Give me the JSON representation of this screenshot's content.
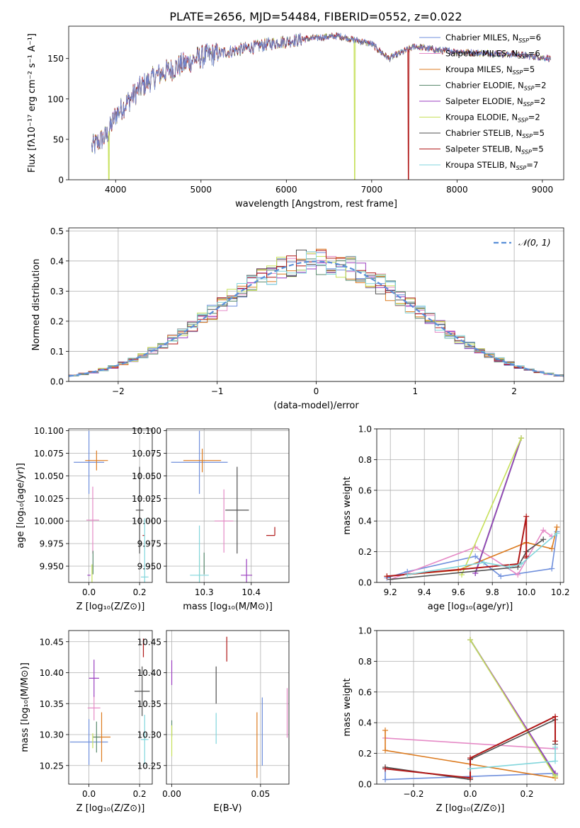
{
  "title": "PLATE=2656, MJD=54484, FIBERID=0552, z=0.022",
  "colors": {
    "chabrier_miles": "#6f8fdc",
    "salpeter_miles": "#e58ac6",
    "kroupa_miles": "#dc7a1e",
    "chabrier_elodie": "#5a8a6e",
    "salpeter_elodie": "#9b3fc0",
    "kroupa_elodie": "#c6e05a",
    "chabrier_stelib": "#505050",
    "salpeter_stelib": "#b01818",
    "kroupa_stelib": "#82d6dc",
    "normal": "#5a8fd8"
  },
  "chart_data": [
    {
      "id": "spectrum",
      "type": "line",
      "xlabel": "wavelength [Angstrom, rest frame]",
      "ylabel": "Flux [f$_\\lambda$10$^{-17}$ erg cm$^{-2}$ s$^{-1}$ A$^{-1}$]",
      "ylabel_display": "Flux [fλ10⁻¹⁷ erg cm⁻² s⁻¹ A⁻¹]",
      "xlim": [
        3450,
        9250
      ],
      "ylim": [
        0,
        190
      ],
      "xticks": [
        4000,
        5000,
        6000,
        7000,
        8000,
        9000
      ],
      "yticks": [
        0,
        50,
        100,
        150
      ],
      "legend_position": "top-right",
      "legend": [
        "Chabrier MILES, N$_{SSP}$=6",
        "Salpeter MILES, N$_{SSP}$=6",
        "Kroupa MILES, N$_{SSP}$=5",
        "Chabrier ELODIE, N$_{SSP}$=2",
        "Salpeter ELODIE, N$_{SSP}$=2",
        "Kroupa ELODIE, N$_{SSP}$=2",
        "Chabrier STELIB, N$_{SSP}$=5",
        "Salpeter STELIB, N$_{SSP}$=5",
        "Kroupa STELIB, N$_{SSP}$=7"
      ],
      "legend_labels": [
        {
          "name": "Chabrier MILES, N",
          "sub": "SSP",
          "tail": "=6"
        },
        {
          "name": "Salpeter MILES, N",
          "sub": "SSP",
          "tail": "=6"
        },
        {
          "name": "Kroupa MILES, N",
          "sub": "SSP",
          "tail": "=5"
        },
        {
          "name": "Chabrier ELODIE, N",
          "sub": "SSP",
          "tail": "=2"
        },
        {
          "name": "Salpeter ELODIE, N",
          "sub": "SSP",
          "tail": "=2"
        },
        {
          "name": "Kroupa ELODIE, N",
          "sub": "SSP",
          "tail": "=2"
        },
        {
          "name": "Chabrier STELIB, N",
          "sub": "SSP",
          "tail": "=5"
        },
        {
          "name": "Salpeter STELIB, N",
          "sub": "SSP",
          "tail": "=5"
        },
        {
          "name": "Kroupa STELIB, N",
          "sub": "SSP",
          "tail": "=7"
        }
      ],
      "series_keys": [
        "chabrier_miles",
        "salpeter_miles",
        "kroupa_miles",
        "chabrier_elodie",
        "salpeter_elodie",
        "kroupa_elodie",
        "chabrier_stelib",
        "salpeter_stelib",
        "kroupa_stelib"
      ],
      "wavelength_range": [
        3720,
        9100
      ],
      "envelope_nodes": [
        [
          3720,
          40
        ],
        [
          3900,
          55
        ],
        [
          4000,
          80
        ],
        [
          4300,
          115
        ],
        [
          4500,
          130
        ],
        [
          5000,
          152
        ],
        [
          5500,
          162
        ],
        [
          5900,
          170
        ],
        [
          6300,
          175
        ],
        [
          6600,
          178
        ],
        [
          7000,
          168
        ],
        [
          7200,
          150
        ],
        [
          7500,
          165
        ],
        [
          7800,
          160
        ],
        [
          8200,
          157
        ],
        [
          8700,
          155
        ],
        [
          9100,
          150
        ]
      ],
      "drops": [
        {
          "series": "kroupa_elodie",
          "wavelength": 3920
        },
        {
          "series": "kroupa_elodie",
          "wavelength": 6800
        },
        {
          "series": "salpeter_stelib",
          "wavelength": 7430
        }
      ]
    },
    {
      "id": "residuals",
      "type": "histogram",
      "xlabel": "(data-model)/error",
      "ylabel": "Normed distribution",
      "xlim": [
        -2.5,
        2.5
      ],
      "ylim": [
        0,
        0.51
      ],
      "xticks": [
        -2,
        -1,
        0,
        1,
        2
      ],
      "yticks": [
        0.0,
        0.1,
        0.2,
        0.3,
        0.4,
        0.5
      ],
      "grid": true,
      "bin_width": 0.1,
      "legend_position": "top-right",
      "legend": [
        "$\\mathcal{N}(0,1)$"
      ],
      "legend_display": "𝒩(0, 1)"
    },
    {
      "id": "age-vs-Z",
      "type": "errorbar",
      "xlabel": "Z [log$_{10}$(Z/Z$_\\odot$)]",
      "xlabel_display": "Z [log₁₀(Z/Z⊙)]",
      "ylabel": "age  [log$_{10}$(age/yr)]",
      "ylabel_display": "age  [log₁₀(age/yr)]",
      "xlim": [
        -0.08,
        0.25
      ],
      "ylim": [
        9.932,
        10.102
      ],
      "xticks": [
        0.0,
        0.2
      ],
      "yticks": [
        9.95,
        9.975,
        10.0,
        10.025,
        10.05,
        10.075,
        10.1
      ],
      "grid": true,
      "points": [
        {
          "series": "chabrier_miles",
          "x": 0.0,
          "y": 10.065,
          "xerr": 0.06,
          "yerr": 0.035
        },
        {
          "series": "kroupa_miles",
          "x": 0.03,
          "y": 10.067,
          "xerr": 0.045,
          "yerr": 0.011
        },
        {
          "series": "salpeter_miles",
          "x": 0.015,
          "y": 10.001,
          "xerr": 0.025,
          "yerr": 0.037
        },
        {
          "series": "chabrier_elodie",
          "x": 0.016,
          "y": 9.954,
          "xerr": 0.0,
          "yerr": 0.013
        },
        {
          "series": "kroupa_elodie",
          "x": 0.012,
          "y": 9.94,
          "xerr": 0.0,
          "yerr": 0.012
        },
        {
          "series": "salpeter_elodie",
          "x": 0.0,
          "y": 9.94,
          "xerr": 0.006,
          "yerr": 0.0
        },
        {
          "series": "chabrier_stelib",
          "x": 0.2,
          "y": 10.012,
          "xerr": 0.015,
          "yerr": 0.048
        },
        {
          "series": "salpeter_stelib",
          "x": 0.215,
          "y": 9.984,
          "xerr": 0.003,
          "yerr": 0.0
        },
        {
          "series": "kroupa_stelib",
          "x": 0.22,
          "y": 9.938,
          "xerr": 0.015,
          "yerr": 0.065
        }
      ]
    },
    {
      "id": "age-vs-mass",
      "type": "errorbar",
      "xlabel": "mass [log$_{10}$(M/M$_\\odot$)]",
      "xlabel_display": "mass [log₁₀(M/M⊙)]",
      "xlim": [
        10.22,
        10.48
      ],
      "ylim": [
        9.932,
        10.102
      ],
      "xticks": [
        10.3,
        10.4
      ],
      "yticks": [
        9.95,
        9.975,
        10.0,
        10.025,
        10.05,
        10.075,
        10.1
      ],
      "grid": true,
      "points": [
        {
          "series": "chabrier_miles",
          "x": 10.29,
          "y": 10.065,
          "xerr": 0.06,
          "yerr": 0.035
        },
        {
          "series": "kroupa_miles",
          "x": 10.296,
          "y": 10.067,
          "xerr": 0.04,
          "yerr": 0.013
        },
        {
          "series": "salpeter_miles",
          "x": 10.342,
          "y": 10.0,
          "xerr": 0.02,
          "yerr": 0.035
        },
        {
          "series": "chabrier_elodie",
          "x": 10.3,
          "y": 9.953,
          "xerr": 0.0,
          "yerr": 0.012
        },
        {
          "series": "kroupa_elodie",
          "x": 10.29,
          "y": 9.94,
          "xerr": 0.0,
          "yerr": 0.022
        },
        {
          "series": "salpeter_elodie",
          "x": 10.39,
          "y": 9.94,
          "xerr": 0.012,
          "yerr": 0.018
        },
        {
          "series": "chabrier_stelib",
          "x": 10.37,
          "y": 10.012,
          "xerr": 0.025,
          "yerr": 0.048
        },
        {
          "series": "salpeter_stelib",
          "x": 10.45,
          "y": 9.984,
          "xerr": 0.0,
          "yerr": 0.0
        },
        {
          "series": "kroupa_stelib",
          "x": 10.29,
          "y": 9.94,
          "xerr": 0.02,
          "yerr": 0.055
        }
      ]
    },
    {
      "id": "weight-vs-age",
      "type": "line",
      "xlabel": "age  [log$_{10}$(age/yr)]",
      "xlabel_display": "age  [log₁₀(age/yr)]",
      "ylabel": "mass weight",
      "xlim": [
        9.12,
        10.22
      ],
      "ylim": [
        0.0,
        1.0
      ],
      "xticks": [
        9.2,
        9.4,
        9.6,
        9.8,
        10.0,
        10.2
      ],
      "yticks": [
        0.0,
        0.2,
        0.4,
        0.6,
        0.8,
        1.0
      ],
      "grid": true,
      "series": [
        {
          "key": "chabrier_miles",
          "x": [
            9.18,
            9.3,
            9.7,
            9.85,
            10.15,
            10.18
          ],
          "y": [
            0.03,
            0.07,
            0.17,
            0.04,
            0.09,
            0.33
          ]
        },
        {
          "key": "salpeter_miles",
          "x": [
            9.2,
            9.7,
            9.95,
            10.1,
            10.15
          ],
          "y": [
            0.02,
            0.23,
            0.05,
            0.34,
            0.3
          ]
        },
        {
          "key": "kroupa_miles",
          "x": [
            9.18,
            9.6,
            10.0,
            10.15,
            10.18
          ],
          "y": [
            0.04,
            0.08,
            0.26,
            0.22,
            0.36
          ]
        },
        {
          "key": "chabrier_elodie",
          "x": [
            9.7,
            9.97
          ],
          "y": [
            0.06,
            0.94
          ]
        },
        {
          "key": "salpeter_elodie",
          "x": [
            9.7,
            9.97
          ],
          "y": [
            0.06,
            0.94
          ]
        },
        {
          "key": "kroupa_elodie",
          "x": [
            9.62,
            9.97
          ],
          "y": [
            0.05,
            0.94
          ]
        },
        {
          "key": "chabrier_stelib",
          "x": [
            9.2,
            9.95,
            10.0,
            10.1
          ],
          "y": [
            0.02,
            0.1,
            0.2,
            0.28
          ]
        },
        {
          "key": "salpeter_stelib",
          "x": [
            9.18,
            9.95,
            10.0,
            10.0,
            10.0
          ],
          "y": [
            0.04,
            0.12,
            0.43,
            0.16,
            0.17
          ]
        },
        {
          "key": "kroupa_stelib",
          "x": [
            9.3,
            9.75,
            9.9,
            9.97,
            10.18
          ],
          "y": [
            0.05,
            0.13,
            0.1,
            0.12,
            0.32
          ]
        }
      ]
    },
    {
      "id": "mass-vs-Z",
      "type": "errorbar",
      "xlabel": "Z [log$_{10}$(Z/Z$_\\odot$)]",
      "xlabel_display": "Z [log₁₀(Z/Z⊙)]",
      "ylabel": "mass [log$_{10}$(M/M$_\\odot$)]",
      "ylabel_display": "mass [log₁₀(M/M⊙)]",
      "xlim": [
        -0.08,
        0.25
      ],
      "ylim": [
        10.22,
        10.468
      ],
      "xticks": [
        0.0,
        0.2
      ],
      "yticks": [
        10.25,
        10.3,
        10.35,
        10.4,
        10.45
      ],
      "grid": true,
      "points": [
        {
          "series": "chabrier_miles",
          "x": 0.0,
          "y": 10.288,
          "xerr": 0.075,
          "yerr": 0.037
        },
        {
          "series": "kroupa_miles",
          "x": 0.05,
          "y": 10.296,
          "xerr": 0.035,
          "yerr": 0.04
        },
        {
          "series": "salpeter_miles",
          "x": 0.02,
          "y": 10.343,
          "xerr": 0.025,
          "yerr": 0.02
        },
        {
          "series": "chabrier_elodie",
          "x": 0.03,
          "y": 10.296,
          "xerr": 0.015,
          "yerr": 0.025
        },
        {
          "series": "kroupa_elodie",
          "x": 0.015,
          "y": 10.29,
          "xerr": 0.0,
          "yerr": 0.012
        },
        {
          "series": "salpeter_elodie",
          "x": 0.02,
          "y": 10.391,
          "xerr": 0.02,
          "yerr": 0.03
        },
        {
          "series": "chabrier_stelib",
          "x": 0.21,
          "y": 10.37,
          "xerr": 0.03,
          "yerr": 0.04
        },
        {
          "series": "salpeter_stelib",
          "x": 0.215,
          "y": 10.44,
          "xerr": 0.0,
          "yerr": 0.015
        },
        {
          "series": "kroupa_stelib",
          "x": 0.22,
          "y": 10.292,
          "xerr": 0.015,
          "yerr": 0.04
        }
      ]
    },
    {
      "id": "ebv",
      "type": "errorbar",
      "xlabel": "E(B-V)",
      "xlim": [
        -0.003,
        0.066
      ],
      "ylim": [
        10.22,
        10.468
      ],
      "xticks": [
        0.0,
        0.05
      ],
      "yticks": [
        10.25,
        10.3,
        10.35,
        10.4,
        10.45
      ],
      "grid": true,
      "points": [
        {
          "series": "salpeter_elodie",
          "x": 0.0,
          "y": 10.4,
          "xerr": 0.0,
          "yerr": 0.02
        },
        {
          "series": "chabrier_elodie",
          "x": 0.0,
          "y": 10.31,
          "xerr": 0.0,
          "yerr": 0.013
        },
        {
          "series": "kroupa_elodie",
          "x": 0.0,
          "y": 10.29,
          "xerr": 0.0,
          "yerr": 0.025
        },
        {
          "series": "chabrier_stelib",
          "x": 0.025,
          "y": 10.38,
          "xerr": 0.0,
          "yerr": 0.03
        },
        {
          "series": "kroupa_stelib",
          "x": 0.025,
          "y": 10.31,
          "xerr": 0.0,
          "yerr": 0.025
        },
        {
          "series": "salpeter_stelib",
          "x": 0.031,
          "y": 10.438,
          "xerr": 0.0,
          "yerr": 0.02
        },
        {
          "series": "kroupa_miles",
          "x": 0.048,
          "y": 10.283,
          "xerr": 0.0,
          "yerr": 0.053
        },
        {
          "series": "chabrier_miles",
          "x": 0.051,
          "y": 10.305,
          "xerr": 0.0,
          "yerr": 0.055
        },
        {
          "series": "salpeter_miles",
          "x": 0.065,
          "y": 10.335,
          "xerr": 0.0,
          "yerr": 0.04
        }
      ]
    },
    {
      "id": "weight-vs-Z",
      "type": "line",
      "xlabel": "Z [log$_{10}$(Z/Z$_\\odot$)]",
      "xlabel_display": "Z [log₁₀(Z/Z⊙)]",
      "ylabel": "mass weight",
      "xlim": [
        -0.33,
        0.33
      ],
      "ylim": [
        0.0,
        1.0
      ],
      "xticks": [
        -0.2,
        0.0,
        0.2
      ],
      "yticks": [
        0.0,
        0.2,
        0.4,
        0.6,
        0.8,
        1.0
      ],
      "grid": true,
      "series": [
        {
          "key": "chabrier_miles",
          "x": [
            -0.3,
            -0.3,
            0.0,
            0.3
          ],
          "y": [
            0.1,
            0.03,
            0.05,
            0.07
          ]
        },
        {
          "key": "salpeter_miles",
          "x": [
            -0.3,
            0.3
          ],
          "y": [
            0.3,
            0.23
          ]
        },
        {
          "key": "kroupa_miles",
          "x": [
            -0.3,
            -0.3,
            0.3
          ],
          "y": [
            0.35,
            0.22,
            0.04
          ]
        },
        {
          "key": "chabrier_elodie",
          "x": [
            0.0,
            0.3
          ],
          "y": [
            0.94,
            0.06
          ]
        },
        {
          "key": "salpeter_elodie",
          "x": [
            0.0,
            0.3
          ],
          "y": [
            0.94,
            0.07
          ]
        },
        {
          "key": "kroupa_elodie",
          "x": [
            0.0,
            0.3
          ],
          "y": [
            0.94,
            0.05
          ]
        },
        {
          "key": "chabrier_stelib",
          "x": [
            -0.3,
            0.0,
            0.0,
            0.3,
            0.3
          ],
          "y": [
            0.11,
            0.03,
            0.16,
            0.42,
            0.26
          ]
        },
        {
          "key": "salpeter_stelib",
          "x": [
            -0.3,
            0.0,
            0.0,
            0.3,
            0.3
          ],
          "y": [
            0.1,
            0.04,
            0.17,
            0.44,
            0.28
          ]
        },
        {
          "key": "kroupa_stelib",
          "x": [
            0.0,
            0.3,
            0.3
          ],
          "y": [
            0.1,
            0.15,
            0.24
          ]
        }
      ]
    }
  ]
}
